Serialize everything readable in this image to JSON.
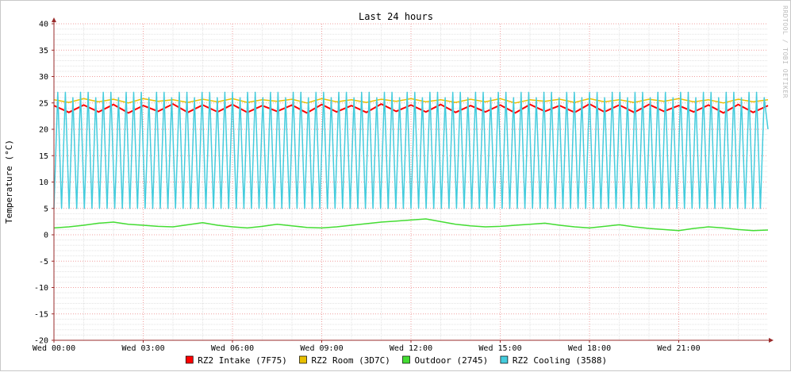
{
  "colors": {
    "background": "#ffffff",
    "grid_minor": "#e3e3e3",
    "grid_major": "#f0a0a0",
    "axis": "#9a2b2b"
  },
  "chart_data": {
    "type": "line",
    "title": "Last 24 hours",
    "ylabel": "Temperature (°C)",
    "xlabel": "",
    "vertical_label": "RRDTOOL / TOBI OETIKER",
    "ylim": [
      -20,
      40
    ],
    "yticks": [
      -20,
      -15,
      -10,
      -5,
      0,
      5,
      10,
      15,
      20,
      25,
      30,
      35,
      40
    ],
    "x_range_hours": [
      0,
      24
    ],
    "xticks": [
      {
        "hour": 0,
        "label": "Wed 00:00"
      },
      {
        "hour": 3,
        "label": "Wed 03:00"
      },
      {
        "hour": 6,
        "label": "Wed 06:00"
      },
      {
        "hour": 9,
        "label": "Wed 09:00"
      },
      {
        "hour": 12,
        "label": "Wed 12:00"
      },
      {
        "hour": 15,
        "label": "Wed 15:00"
      },
      {
        "hour": 18,
        "label": "Wed 18:00"
      },
      {
        "hour": 21,
        "label": "Wed 21:00"
      }
    ],
    "grid": true,
    "legend_position": "bottom",
    "series": [
      {
        "name": "RZ2 Intake (7F75)",
        "color": "#ff0000",
        "values": [
          24.5,
          23.2,
          24.6,
          23.3,
          24.7,
          23.1,
          24.5,
          23.4,
          24.8,
          23.2,
          24.6,
          23.3,
          24.7,
          23.2,
          24.5,
          23.4,
          24.6,
          23.1,
          24.7,
          23.3,
          24.5,
          23.2,
          24.8,
          23.4,
          24.6,
          23.3,
          24.7,
          23.2,
          24.5,
          23.3,
          24.6,
          23.1,
          24.7,
          23.4,
          24.5,
          23.2,
          24.8,
          23.3,
          24.6,
          23.2,
          24.7,
          23.4,
          24.5,
          23.3,
          24.6,
          23.1,
          24.7,
          23.2,
          24.5
        ]
      },
      {
        "name": "RZ2 Room (3D7C)",
        "color": "#e8c000",
        "values": [
          25.6,
          25.1,
          25.8,
          25.2,
          25.7,
          25.0,
          25.8,
          25.3,
          25.6,
          25.1,
          25.7,
          25.2,
          25.8,
          25.1,
          25.6,
          25.3,
          25.7,
          25.0,
          25.8,
          25.2,
          25.6,
          25.1,
          25.7,
          25.3,
          25.8,
          25.2,
          25.6,
          25.1,
          25.7,
          25.2,
          25.8,
          25.0,
          25.6,
          25.3,
          25.7,
          25.1,
          25.8,
          25.2,
          25.6,
          25.1,
          25.7,
          25.3,
          25.8,
          25.2,
          25.6,
          25.0,
          25.7,
          25.2,
          25.6
        ]
      },
      {
        "name": "Outdoor (2745)",
        "color": "#44dd33",
        "values": [
          1.3,
          1.5,
          1.8,
          2.2,
          2.4,
          2.0,
          1.8,
          1.6,
          1.5,
          1.9,
          2.3,
          1.8,
          1.5,
          1.3,
          1.6,
          2.0,
          1.7,
          1.4,
          1.3,
          1.5,
          1.8,
          2.1,
          2.4,
          2.6,
          2.8,
          3.0,
          2.5,
          2.0,
          1.7,
          1.5,
          1.6,
          1.8,
          2.0,
          2.2,
          1.8,
          1.5,
          1.3,
          1.6,
          1.9,
          1.5,
          1.2,
          1.0,
          0.8,
          1.2,
          1.5,
          1.3,
          1.0,
          0.8,
          0.9
        ]
      },
      {
        "name": "RZ2 Cooling (3588)",
        "color": "#44ccdd",
        "values": [
          5,
          27,
          5,
          27,
          5,
          26,
          5,
          27,
          5,
          27,
          5,
          26,
          5,
          27,
          5,
          27,
          5,
          26,
          5,
          27,
          5,
          27,
          5,
          27,
          5,
          26,
          5,
          27,
          5,
          27,
          5,
          26,
          5,
          27,
          5,
          27,
          5,
          26,
          5,
          27,
          5,
          27,
          5,
          26,
          5,
          27,
          5,
          27,
          5,
          26,
          5,
          27,
          5,
          27,
          5,
          26,
          5,
          27,
          5,
          27,
          5,
          26,
          5,
          27,
          5,
          27,
          5,
          26,
          5,
          27,
          5,
          27,
          5,
          26,
          5,
          27,
          5,
          27,
          5,
          26,
          5,
          27,
          5,
          27,
          5,
          26,
          5,
          27,
          5,
          27,
          5,
          26,
          5,
          27,
          5,
          27,
          5,
          26,
          5,
          27,
          5,
          27,
          5,
          26,
          5,
          27,
          5,
          27,
          5,
          26,
          5,
          27,
          5,
          27,
          5,
          26,
          5,
          27,
          5,
          27,
          5,
          26,
          5,
          27,
          5,
          27,
          5,
          26,
          5,
          27,
          5,
          27,
          5,
          26,
          5,
          27,
          5,
          27,
          5,
          26,
          5,
          27,
          5,
          27,
          5,
          26,
          5,
          27,
          5,
          27,
          5,
          26,
          5,
          27,
          5,
          27,
          5,
          26,
          5,
          27,
          5,
          27,
          5,
          26,
          5,
          27,
          5,
          27,
          5,
          26,
          5,
          27,
          5,
          27,
          5,
          26,
          5,
          27,
          5,
          27,
          5,
          26,
          5,
          27,
          5,
          27,
          5,
          26,
          20
        ]
      }
    ]
  }
}
